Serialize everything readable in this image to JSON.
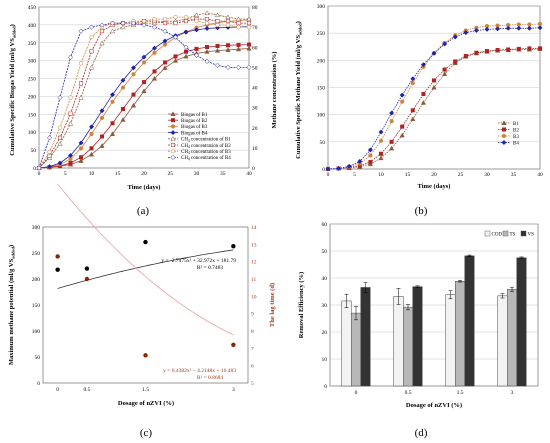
{
  "figure": {
    "panel_labels": [
      "(a)",
      "(b)",
      "(c)",
      "(d)"
    ]
  },
  "chart_data": [
    {
      "panel": "a",
      "type": "line",
      "xlabel": "Time (days)",
      "ylabel": "Cumulative Specific Biogas Yield (ml/g VS",
      "ylabel_sub": "added",
      "ylabel_suffix": ")",
      "y2label": "Methane concentration (%)",
      "xlim": [
        0,
        40
      ],
      "ylim": [
        0,
        450
      ],
      "y2lim": [
        0,
        80
      ],
      "xticks": [
        0,
        5,
        10,
        15,
        20,
        25,
        30,
        35,
        40
      ],
      "yticks": [
        0,
        50,
        100,
        150,
        200,
        250,
        300,
        350,
        400,
        450
      ],
      "y2ticks": [
        0,
        10,
        20,
        30,
        40,
        50,
        60,
        70,
        80
      ],
      "x": [
        0,
        2,
        4,
        6,
        8,
        10,
        12,
        14,
        16,
        18,
        20,
        22,
        24,
        26,
        28,
        30,
        32,
        34,
        36,
        38,
        40
      ],
      "series": [
        {
          "name": "Biogas of B1",
          "axis": "left",
          "marker": "triangle",
          "color": "#8b5a3c",
          "values": [
            0,
            2,
            5,
            10,
            20,
            38,
            62,
            95,
            135,
            175,
            215,
            250,
            280,
            300,
            312,
            320,
            325,
            328,
            330,
            332,
            334
          ]
        },
        {
          "name": "Biogas of B2",
          "axis": "left",
          "marker": "square",
          "color": "#b22222",
          "values": [
            0,
            2,
            6,
            14,
            30,
            55,
            88,
            125,
            165,
            205,
            240,
            270,
            295,
            312,
            325,
            333,
            338,
            341,
            343,
            344,
            345
          ]
        },
        {
          "name": "Biogas of B3",
          "axis": "left",
          "marker": "circle",
          "color": "#cd853f",
          "values": [
            0,
            3,
            10,
            25,
            55,
            95,
            140,
            185,
            225,
            262,
            295,
            322,
            345,
            365,
            380,
            392,
            400,
            406,
            410,
            412,
            414
          ]
        },
        {
          "name": "Biogas of B4",
          "axis": "left",
          "marker": "diamond",
          "color": "#2222aa",
          "values": [
            0,
            4,
            14,
            35,
            70,
            115,
            160,
            205,
            245,
            280,
            310,
            335,
            355,
            370,
            380,
            386,
            390,
            392,
            393,
            394,
            395
          ]
        },
        {
          "name": "CH4 concentration of B1",
          "axis": "right",
          "marker": "triangle-open",
          "color": "#8b5a3c",
          "values": [
            0,
            5,
            12,
            22,
            35,
            50,
            62,
            68,
            70,
            71,
            72,
            72,
            73,
            73,
            74,
            76,
            77,
            76,
            75,
            74,
            74
          ]
        },
        {
          "name": "CH4 concentration of B2",
          "axis": "right",
          "marker": "square-open",
          "color": "#b22222",
          "values": [
            0,
            6,
            15,
            27,
            42,
            58,
            68,
            71,
            72,
            72,
            73,
            73,
            72,
            72,
            73,
            74,
            74,
            73,
            73,
            72,
            72
          ]
        },
        {
          "name": "CH4 concentration of B3",
          "axis": "right",
          "marker": "circle-open",
          "color": "#cd853f",
          "values": [
            0,
            8,
            20,
            35,
            52,
            65,
            70,
            72,
            72,
            73,
            73,
            74,
            74,
            75,
            75,
            73,
            72,
            71,
            71,
            70,
            70
          ]
        },
        {
          "name": "CH4 concentration of B4",
          "axis": "right",
          "marker": "diamond-open",
          "color": "#2222aa",
          "values": [
            0,
            15,
            35,
            55,
            68,
            70,
            71,
            72,
            72,
            72,
            71,
            70,
            68,
            65,
            60,
            56,
            53,
            51,
            50,
            50,
            50
          ]
        }
      ],
      "legend": {
        "position": "lower-right",
        "entries": [
          "Biogas of B1",
          "Biogas of B2",
          "Biogas of B3",
          "Biogas of B4",
          "CH",
          "CH",
          "CH",
          "CH"
        ],
        "ch4_sub": "4",
        "ch4_rest": [
          " concentration of B1",
          " concentration of B2",
          " concentration of B3",
          " concentration of B4"
        ]
      }
    },
    {
      "panel": "b",
      "type": "line",
      "xlabel": "Time (days)",
      "ylabel": "Cumulative Specific Methane Yield (ml/g VS",
      "ylabel_sub": "added",
      "ylabel_suffix": ")",
      "xlim": [
        0,
        40
      ],
      "ylim": [
        0,
        300
      ],
      "xticks": [
        0,
        5,
        10,
        15,
        20,
        25,
        30,
        35,
        40
      ],
      "yticks": [
        0,
        50,
        100,
        150,
        200,
        250,
        300
      ],
      "x": [
        0,
        2,
        4,
        6,
        8,
        10,
        12,
        14,
        16,
        18,
        20,
        22,
        24,
        26,
        28,
        30,
        32,
        34,
        36,
        38,
        40
      ],
      "series": [
        {
          "name": "B1",
          "marker": "triangle",
          "color": "#8b5a3c",
          "values": [
            0,
            1,
            2,
            4,
            9,
            20,
            38,
            62,
            92,
            122,
            150,
            175,
            195,
            207,
            213,
            216,
            218,
            219,
            220,
            220,
            221
          ]
        },
        {
          "name": "B2",
          "marker": "square",
          "color": "#b22222",
          "values": [
            0,
            1,
            3,
            6,
            13,
            28,
            50,
            78,
            108,
            138,
            163,
            183,
            198,
            208,
            214,
            217,
            219,
            220,
            221,
            222,
            222
          ]
        },
        {
          "name": "B3",
          "marker": "circle",
          "color": "#cd853f",
          "values": [
            0,
            1,
            4,
            10,
            25,
            52,
            88,
            124,
            158,
            188,
            213,
            232,
            246,
            255,
            260,
            263,
            264,
            265,
            266,
            266,
            267
          ]
        },
        {
          "name": "B4",
          "marker": "diamond",
          "color": "#2222aa",
          "values": [
            0,
            1,
            5,
            14,
            35,
            68,
            103,
            136,
            166,
            192,
            213,
            230,
            243,
            251,
            255,
            257,
            258,
            259,
            259,
            259,
            260
          ]
        }
      ],
      "legend": {
        "position": "lower-right",
        "entries": [
          "B1",
          "B2",
          "B3",
          "B4"
        ]
      }
    },
    {
      "panel": "c",
      "type": "scatter",
      "xlabel": "Dosage of nZVI (%)",
      "ylabel": "Maximum methane potential (ml/g VS",
      "ylabel_sub": "added",
      "ylabel_suffix": ")",
      "y2label": "The lag time (d)",
      "xlim": [
        -0.25,
        3.25
      ],
      "ylim": [
        0,
        300
      ],
      "y2lim": [
        5,
        14
      ],
      "xticks": [
        0,
        0.5,
        1.5,
        3
      ],
      "yticks": [
        0,
        50,
        100,
        150,
        200,
        250,
        300
      ],
      "y2ticks": [
        5,
        6,
        7,
        8,
        9,
        10,
        11,
        12,
        13,
        14
      ],
      "x": [
        0,
        0.5,
        1.5,
        3
      ],
      "series": [
        {
          "name": "Maximum methane potential",
          "axis": "left",
          "color": "#000000",
          "values": [
            218,
            220,
            271,
            263
          ]
        },
        {
          "name": "Lag time",
          "axis": "right",
          "color": "#8b2500",
          "values": [
            12.3,
            11.0,
            6.6,
            7.2
          ]
        }
      ],
      "fits": [
        {
          "axis": "left",
          "a": -2.7475,
          "b": 32.972,
          "c": 181.79,
          "color": "#333333",
          "equation": "y = -2.7475x² + 32.972x + 181.79",
          "r2": "R² = 0.7483"
        },
        {
          "axis": "right",
          "a": 0.4382,
          "b": -4.2148,
          "c": 16.483,
          "color": "#e8a0a0",
          "equation": "y = 0.4382x² − 4.2148x + 16.483",
          "r2": "R² = 0.8684"
        }
      ]
    },
    {
      "panel": "d",
      "type": "bar",
      "xlabel": "Dosage of nZVI (%)",
      "ylabel": "Removal Efficiency (%)",
      "ylim": [
        0,
        60
      ],
      "yticks": [
        0,
        10,
        20,
        30,
        40,
        50,
        60
      ],
      "categories": [
        "0",
        "0.5",
        "1.5",
        "3"
      ],
      "series": [
        {
          "name": "COD",
          "color": "#f2f2f2",
          "values": [
            31.5,
            33.2,
            33.8,
            33.4
          ],
          "errors": [
            2.5,
            3.0,
            1.5,
            0.8
          ]
        },
        {
          "name": "TS",
          "color": "#b8b8b8",
          "values": [
            27.0,
            29.2,
            38.8,
            35.8
          ],
          "errors": [
            2.5,
            1.0,
            0.3,
            0.8
          ]
        },
        {
          "name": "VS",
          "color": "#333333",
          "values": [
            36.5,
            36.8,
            48.2,
            47.5
          ],
          "errors": [
            1.8,
            0.3,
            0.3,
            0.3
          ]
        }
      ],
      "legend": {
        "position": "top-right"
      }
    }
  ]
}
